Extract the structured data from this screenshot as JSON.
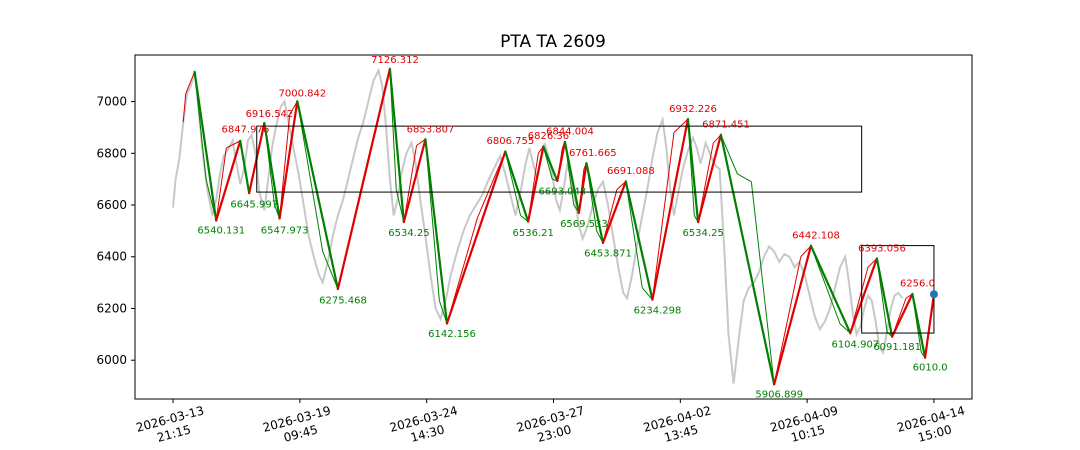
{
  "chart_data": {
    "type": "line",
    "title": "PTA TA 2609",
    "xlabel": "",
    "ylabel": "",
    "ylim": [
      5850,
      7180
    ],
    "xlim": [
      -0.3,
      6.3
    ],
    "yticks": [
      6000,
      6200,
      6400,
      6600,
      6800,
      7000
    ],
    "xticks": [
      {
        "x": 0,
        "label": [
          "2026-03-13",
          "21:15"
        ]
      },
      {
        "x": 1,
        "label": [
          "2026-03-19",
          "09:45"
        ]
      },
      {
        "x": 2,
        "label": [
          "2026-03-24",
          "14:30"
        ]
      },
      {
        "x": 3,
        "label": [
          "2026-03-27",
          "23:00"
        ]
      },
      {
        "x": 4,
        "label": [
          "2026-04-02",
          "13:45"
        ]
      },
      {
        "x": 5,
        "label": [
          "2026-04-09",
          "10:15"
        ]
      },
      {
        "x": 6,
        "label": [
          "2026-04-14",
          "15:00"
        ]
      }
    ],
    "colors": {
      "price": "#c8c8c8",
      "up": "#e00000",
      "down": "#008000",
      "box": "#000000",
      "marker": "#1f77b4"
    },
    "price_series": [
      [
        0.0,
        6590
      ],
      [
        0.02,
        6700
      ],
      [
        0.05,
        6780
      ],
      [
        0.08,
        6920
      ],
      [
        0.11,
        7030
      ],
      [
        0.14,
        7060
      ],
      [
        0.17,
        7115
      ],
      [
        0.2,
        6980
      ],
      [
        0.23,
        6820
      ],
      [
        0.27,
        6660
      ],
      [
        0.31,
        6560
      ],
      [
        0.34,
        6620
      ],
      [
        0.37,
        6720
      ],
      [
        0.4,
        6790
      ],
      [
        0.44,
        6820
      ],
      [
        0.47,
        6850
      ],
      [
        0.5,
        6760
      ],
      [
        0.53,
        6680
      ],
      [
        0.56,
        6740
      ],
      [
        0.59,
        6850
      ],
      [
        0.62,
        6870
      ],
      [
        0.65,
        6800
      ],
      [
        0.68,
        6650
      ],
      [
        0.72,
        6580
      ],
      [
        0.75,
        6700
      ],
      [
        0.78,
        6820
      ],
      [
        0.81,
        6900
      ],
      [
        0.85,
        6980
      ],
      [
        0.88,
        7000
      ],
      [
        0.91,
        6920
      ],
      [
        0.95,
        6820
      ],
      [
        0.99,
        6720
      ],
      [
        1.03,
        6600
      ],
      [
        1.07,
        6480
      ],
      [
        1.11,
        6400
      ],
      [
        1.15,
        6330
      ],
      [
        1.18,
        6300
      ],
      [
        1.22,
        6380
      ],
      [
        1.26,
        6480
      ],
      [
        1.3,
        6560
      ],
      [
        1.34,
        6620
      ],
      [
        1.38,
        6700
      ],
      [
        1.42,
        6780
      ],
      [
        1.46,
        6860
      ],
      [
        1.5,
        6920
      ],
      [
        1.54,
        7000
      ],
      [
        1.58,
        7080
      ],
      [
        1.62,
        7120
      ],
      [
        1.65,
        7060
      ],
      [
        1.68,
        6900
      ],
      [
        1.71,
        6700
      ],
      [
        1.74,
        6560
      ],
      [
        1.77,
        6620
      ],
      [
        1.8,
        6720
      ],
      [
        1.84,
        6800
      ],
      [
        1.88,
        6840
      ],
      [
        1.91,
        6770
      ],
      [
        1.95,
        6620
      ],
      [
        1.99,
        6480
      ],
      [
        2.03,
        6330
      ],
      [
        2.07,
        6200
      ],
      [
        2.11,
        6160
      ],
      [
        2.15,
        6230
      ],
      [
        2.19,
        6330
      ],
      [
        2.24,
        6420
      ],
      [
        2.29,
        6500
      ],
      [
        2.34,
        6560
      ],
      [
        2.39,
        6600
      ],
      [
        2.44,
        6640
      ],
      [
        2.49,
        6700
      ],
      [
        2.54,
        6750
      ],
      [
        2.58,
        6790
      ],
      [
        2.62,
        6720
      ],
      [
        2.66,
        6640
      ],
      [
        2.7,
        6560
      ],
      [
        2.74,
        6650
      ],
      [
        2.78,
        6760
      ],
      [
        2.81,
        6820
      ],
      [
        2.84,
        6760
      ],
      [
        2.87,
        6700
      ],
      [
        2.9,
        6770
      ],
      [
        2.93,
        6840
      ],
      [
        2.96,
        6790
      ],
      [
        2.99,
        6720
      ],
      [
        3.02,
        6620
      ],
      [
        3.05,
        6580
      ],
      [
        3.08,
        6660
      ],
      [
        3.11,
        6760
      ],
      [
        3.14,
        6700
      ],
      [
        3.17,
        6620
      ],
      [
        3.2,
        6520
      ],
      [
        3.23,
        6470
      ],
      [
        3.27,
        6520
      ],
      [
        3.31,
        6600
      ],
      [
        3.35,
        6660
      ],
      [
        3.39,
        6690
      ],
      [
        3.43,
        6600
      ],
      [
        3.47,
        6480
      ],
      [
        3.51,
        6360
      ],
      [
        3.55,
        6260
      ],
      [
        3.58,
        6240
      ],
      [
        3.62,
        6330
      ],
      [
        3.66,
        6450
      ],
      [
        3.7,
        6560
      ],
      [
        3.74,
        6660
      ],
      [
        3.78,
        6780
      ],
      [
        3.82,
        6880
      ],
      [
        3.86,
        6930
      ],
      [
        3.89,
        6820
      ],
      [
        3.92,
        6660
      ],
      [
        3.95,
        6560
      ],
      [
        3.98,
        6640
      ],
      [
        4.02,
        6740
      ],
      [
        4.06,
        6810
      ],
      [
        4.1,
        6860
      ],
      [
        4.13,
        6820
      ],
      [
        4.16,
        6760
      ],
      [
        4.2,
        6840
      ],
      [
        4.24,
        6790
      ],
      [
        4.28,
        6750
      ],
      [
        4.31,
        6740
      ],
      [
        4.35,
        6400
      ],
      [
        4.38,
        6100
      ],
      [
        4.42,
        5910
      ],
      [
        4.46,
        6080
      ],
      [
        4.5,
        6230
      ],
      [
        4.54,
        6280
      ],
      [
        4.58,
        6300
      ],
      [
        4.62,
        6340
      ],
      [
        4.66,
        6400
      ],
      [
        4.7,
        6440
      ],
      [
        4.74,
        6420
      ],
      [
        4.78,
        6380
      ],
      [
        4.82,
        6410
      ],
      [
        4.86,
        6400
      ],
      [
        4.9,
        6360
      ],
      [
        4.94,
        6380
      ],
      [
        4.98,
        6330
      ],
      [
        5.02,
        6250
      ],
      [
        5.06,
        6170
      ],
      [
        5.1,
        6120
      ],
      [
        5.14,
        6150
      ],
      [
        5.18,
        6200
      ],
      [
        5.22,
        6280
      ],
      [
        5.26,
        6360
      ],
      [
        5.3,
        6400
      ],
      [
        5.33,
        6300
      ],
      [
        5.36,
        6180
      ],
      [
        5.39,
        6100
      ],
      [
        5.42,
        6130
      ],
      [
        5.45,
        6200
      ],
      [
        5.48,
        6250
      ],
      [
        5.51,
        6230
      ],
      [
        5.54,
        6150
      ],
      [
        5.57,
        6050
      ],
      [
        5.6,
        6030
      ],
      [
        5.63,
        6110
      ],
      [
        5.66,
        6200
      ],
      [
        5.69,
        6250
      ],
      [
        5.72,
        6260
      ],
      [
        5.75,
        6240
      ]
    ],
    "zigzag": [
      [
        0.17,
        7115
      ],
      [
        0.34,
        6540.131
      ],
      [
        0.53,
        6847.976
      ],
      [
        0.6,
        6645.997
      ],
      [
        0.72,
        6916.542
      ],
      [
        0.84,
        6547.973
      ],
      [
        0.98,
        7000.842
      ],
      [
        1.3,
        6275.468
      ],
      [
        1.71,
        7126.312
      ],
      [
        1.82,
        6534.25
      ],
      [
        1.99,
        6853.807
      ],
      [
        2.16,
        6142.156
      ],
      [
        2.62,
        6806.755
      ],
      [
        2.8,
        6536.21
      ],
      [
        2.92,
        6826.36
      ],
      [
        3.03,
        6693.043
      ],
      [
        3.09,
        6844.004
      ],
      [
        3.2,
        6569.533
      ],
      [
        3.26,
        6761.665
      ],
      [
        3.39,
        6453.871
      ],
      [
        3.57,
        6691.088
      ],
      [
        3.78,
        6234.298
      ],
      [
        4.06,
        6932.226
      ],
      [
        4.14,
        6534.25
      ],
      [
        4.32,
        6871.451
      ],
      [
        4.74,
        5906.899
      ],
      [
        5.03,
        6442.108
      ],
      [
        5.34,
        6104.907
      ],
      [
        5.55,
        6393.056
      ],
      [
        5.67,
        6091.181
      ],
      [
        5.83,
        6256.0
      ],
      [
        5.93,
        6010.0
      ],
      [
        6.0,
        6255
      ]
    ],
    "smooth_line": [
      [
        0.08,
        6920
      ],
      [
        0.1,
        7030
      ],
      [
        0.17,
        7115
      ],
      [
        0.26,
        6700
      ],
      [
        0.34,
        6540
      ],
      [
        0.42,
        6820
      ],
      [
        0.53,
        6848
      ],
      [
        0.6,
        6646
      ],
      [
        0.72,
        6917
      ],
      [
        0.8,
        6600
      ],
      [
        0.84,
        6548
      ],
      [
        0.92,
        6950
      ],
      [
        0.98,
        7001
      ],
      [
        1.18,
        6420
      ],
      [
        1.3,
        6275
      ],
      [
        1.5,
        6700
      ],
      [
        1.71,
        7126
      ],
      [
        1.76,
        6660
      ],
      [
        1.82,
        6534
      ],
      [
        1.92,
        6830
      ],
      [
        1.99,
        6854
      ],
      [
        2.1,
        6230
      ],
      [
        2.16,
        6142
      ],
      [
        2.4,
        6550
      ],
      [
        2.62,
        6807
      ],
      [
        2.74,
        6560
      ],
      [
        2.8,
        6536
      ],
      [
        2.88,
        6800
      ],
      [
        2.92,
        6826
      ],
      [
        2.99,
        6700
      ],
      [
        3.03,
        6693
      ],
      [
        3.07,
        6820
      ],
      [
        3.09,
        6844
      ],
      [
        3.16,
        6600
      ],
      [
        3.2,
        6570
      ],
      [
        3.24,
        6740
      ],
      [
        3.26,
        6762
      ],
      [
        3.34,
        6500
      ],
      [
        3.39,
        6454
      ],
      [
        3.5,
        6660
      ],
      [
        3.57,
        6691
      ],
      [
        3.7,
        6280
      ],
      [
        3.78,
        6234
      ],
      [
        3.95,
        6880
      ],
      [
        4.06,
        6932
      ],
      [
        4.11,
        6560
      ],
      [
        4.14,
        6534
      ],
      [
        4.26,
        6840
      ],
      [
        4.32,
        6871
      ],
      [
        4.45,
        6720
      ],
      [
        4.56,
        6690
      ],
      [
        4.74,
        5907
      ],
      [
        4.95,
        6400
      ],
      [
        5.03,
        6442
      ],
      [
        5.26,
        6140
      ],
      [
        5.34,
        6105
      ],
      [
        5.48,
        6360
      ],
      [
        5.55,
        6393
      ],
      [
        5.63,
        6110
      ],
      [
        5.67,
        6091
      ],
      [
        5.78,
        6240
      ],
      [
        5.83,
        6256
      ],
      [
        5.9,
        6030
      ],
      [
        5.93,
        6010
      ],
      [
        6.0,
        6255
      ]
    ],
    "boxes": [
      {
        "x0": 0.66,
        "x1": 5.43,
        "y0": 6650,
        "y1": 6905
      },
      {
        "x0": 5.43,
        "x1": 6.0,
        "y0": 6105,
        "y1": 6443
      }
    ],
    "marker": {
      "x": 6.0,
      "y": 6255
    },
    "annotations": [
      {
        "text": "6540.131",
        "x": 0.38,
        "y": 6490,
        "color": "green"
      },
      {
        "text": "6847.976",
        "x": 0.57,
        "y": 6880,
        "color": "red"
      },
      {
        "text": "6645.997",
        "x": 0.64,
        "y": 6590,
        "color": "green"
      },
      {
        "text": "6916.542",
        "x": 0.76,
        "y": 6940,
        "color": "red"
      },
      {
        "text": "6547.973",
        "x": 0.88,
        "y": 6490,
        "color": "green"
      },
      {
        "text": "7000.842",
        "x": 1.02,
        "y": 7020,
        "color": "red"
      },
      {
        "text": "6275.468",
        "x": 1.34,
        "y": 6220,
        "color": "green"
      },
      {
        "text": "7126.312",
        "x": 1.75,
        "y": 7150,
        "color": "red"
      },
      {
        "text": "6534.25",
        "x": 1.86,
        "y": 6480,
        "color": "green"
      },
      {
        "text": "6853.807",
        "x": 2.03,
        "y": 6880,
        "color": "red"
      },
      {
        "text": "6142.156",
        "x": 2.2,
        "y": 6090,
        "color": "green"
      },
      {
        "text": "6806.755",
        "x": 2.66,
        "y": 6835,
        "color": "red"
      },
      {
        "text": "6536.21",
        "x": 2.84,
        "y": 6480,
        "color": "green"
      },
      {
        "text": "6826.36",
        "x": 2.96,
        "y": 6855,
        "color": "red"
      },
      {
        "text": "6693.043",
        "x": 3.07,
        "y": 6640,
        "color": "green"
      },
      {
        "text": "6844.004",
        "x": 3.13,
        "y": 6873,
        "color": "red"
      },
      {
        "text": "6569.533",
        "x": 3.24,
        "y": 6515,
        "color": "green"
      },
      {
        "text": "6761.665",
        "x": 3.31,
        "y": 6790,
        "color": "red"
      },
      {
        "text": "6453.871",
        "x": 3.43,
        "y": 6400,
        "color": "green"
      },
      {
        "text": "6691.088",
        "x": 3.61,
        "y": 6720,
        "color": "red"
      },
      {
        "text": "6234.298",
        "x": 3.82,
        "y": 6180,
        "color": "green"
      },
      {
        "text": "6932.226",
        "x": 4.1,
        "y": 6960,
        "color": "red"
      },
      {
        "text": "6534.25",
        "x": 4.18,
        "y": 6480,
        "color": "green"
      },
      {
        "text": "6871.451",
        "x": 4.36,
        "y": 6900,
        "color": "red"
      },
      {
        "text": "5906.899",
        "x": 4.78,
        "y": 5855,
        "color": "green"
      },
      {
        "text": "6442.108",
        "x": 5.07,
        "y": 6470,
        "color": "red"
      },
      {
        "text": "6104.907",
        "x": 5.38,
        "y": 6050,
        "color": "green"
      },
      {
        "text": "6393.056",
        "x": 5.59,
        "y": 6420,
        "color": "red"
      },
      {
        "text": "6091.181",
        "x": 5.71,
        "y": 6040,
        "color": "green"
      },
      {
        "text": "6256.0",
        "x": 5.87,
        "y": 6285,
        "color": "red"
      },
      {
        "text": "6010.0",
        "x": 5.97,
        "y": 5960,
        "color": "green"
      }
    ]
  }
}
